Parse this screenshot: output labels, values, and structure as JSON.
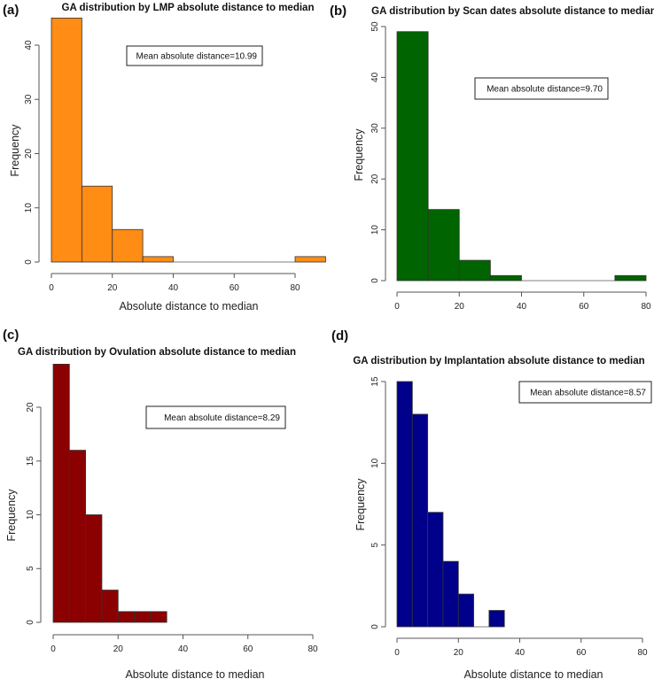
{
  "chart_data": [
    {
      "type": "bar",
      "panel_label": "(a)",
      "title": "GA distribution by LMP absolute distance to median",
      "xlabel": "Absolute distance to median",
      "ylabel": "Frequency",
      "bin_edges": [
        0,
        10,
        20,
        30,
        40,
        50,
        60,
        70,
        80,
        90
      ],
      "values": [
        45,
        14,
        6,
        1,
        0,
        0,
        0,
        0,
        1
      ],
      "xticks": [
        "0",
        "20",
        "40",
        "60",
        "80"
      ],
      "yticks": [
        "0",
        "10",
        "20",
        "30",
        "40"
      ],
      "xlim": [
        0,
        90
      ],
      "ylim": [
        0,
        45
      ],
      "legend": "Mean absolute distance=10.99",
      "color": "#ff8c14"
    },
    {
      "type": "bar",
      "panel_label": "(b)",
      "title": "GA distribution by Scan dates absolute distance to median",
      "xlabel": "",
      "ylabel": "Frequency",
      "bin_edges": [
        0,
        10,
        20,
        30,
        40,
        50,
        60,
        70,
        80
      ],
      "values": [
        49,
        14,
        4,
        1,
        0,
        0,
        0,
        1
      ],
      "xticks": [
        "0",
        "20",
        "40",
        "60",
        "80"
      ],
      "yticks": [
        "0",
        "10",
        "20",
        "30",
        "40",
        "50"
      ],
      "xlim": [
        0,
        80
      ],
      "ylim": [
        0,
        50
      ],
      "legend": "Mean absolute distance=9.70",
      "color": "#006400"
    },
    {
      "type": "bar",
      "panel_label": "(c)",
      "title": "GA distribution by Ovulation absolute distance to median",
      "xlabel": "Absolute distance to median",
      "ylabel": "Frequency",
      "bin_edges": [
        0,
        5,
        10,
        15,
        20,
        25,
        30,
        35
      ],
      "values": [
        24,
        16,
        10,
        3,
        1,
        1,
        1
      ],
      "xticks": [
        "0",
        "20",
        "40",
        "60",
        "80"
      ],
      "yticks": [
        "0",
        "5",
        "10",
        "15",
        "20"
      ],
      "xlim": [
        0,
        80
      ],
      "ylim": [
        0,
        24
      ],
      "legend": "Mean absolute distance=8.29",
      "color": "#8b0000"
    },
    {
      "type": "bar",
      "panel_label": "(d)",
      "title": "GA distribution by Implantation absolute distance to median",
      "xlabel": "Absolute distance to median",
      "ylabel": "Frequency",
      "bin_edges": [
        0,
        5,
        10,
        15,
        20,
        25,
        30,
        35
      ],
      "values": [
        15,
        13,
        7,
        4,
        2,
        0,
        1
      ],
      "xticks": [
        "0",
        "20",
        "40",
        "60",
        "80"
      ],
      "yticks": [
        "0",
        "5",
        "10",
        "15"
      ],
      "xlim": [
        0,
        80
      ],
      "ylim": [
        0,
        15
      ],
      "legend": "Mean absolute distance=8.57",
      "color": "#00008b"
    }
  ]
}
